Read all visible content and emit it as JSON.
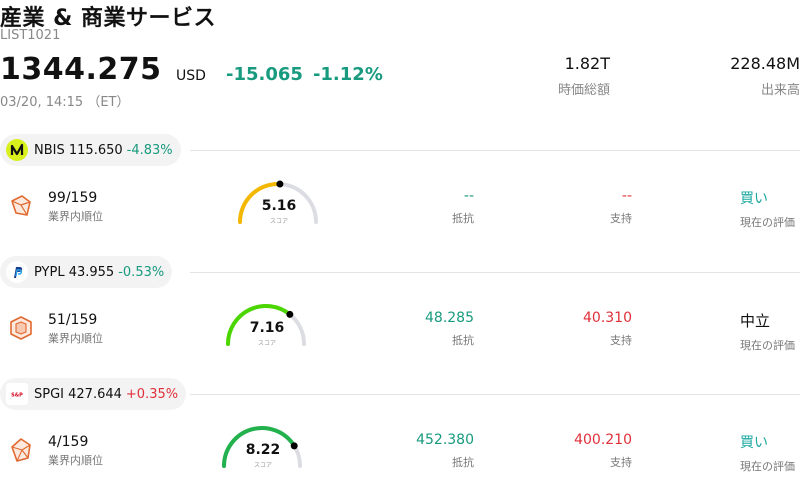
{
  "header": {
    "title": "産業 & 商業サービス",
    "list_id": "LIST1021",
    "price": "1344.275",
    "currency": "USD",
    "change_abs": "-15.065",
    "change_pct": "-1.12%",
    "timestamp": "03/20, 14:15 （ET）"
  },
  "stats": {
    "market_cap_value": "1.82T",
    "market_cap_label": "時価総額",
    "volume_value": "228.48M",
    "volume_label": "出来高"
  },
  "stocks": [
    {
      "symbol": "NBIS",
      "price": "115.650",
      "pct": "-4.83%",
      "rank": "99/159",
      "rank_label": "業界内順位",
      "score": "5.16",
      "score_value": 5.16,
      "score_label": "スコア",
      "score_color": "#f5b800",
      "resistance": "--",
      "resistance_label": "抵抗",
      "support": "--",
      "support_label": "支持",
      "evaluation": "買い",
      "evaluation_label": "現在の評価",
      "logo_icon": "nebius-logo-icon"
    },
    {
      "symbol": "PYPL",
      "price": "43.955",
      "pct": "-0.53%",
      "rank": "51/159",
      "rank_label": "業界内順位",
      "score": "7.16",
      "score_value": 7.16,
      "score_label": "スコア",
      "score_color": "#4cd600",
      "resistance": "48.285",
      "resistance_label": "抵抗",
      "support": "40.310",
      "support_label": "支持",
      "evaluation": "中立",
      "evaluation_label": "現在の評価",
      "logo_icon": "paypal-logo-icon"
    },
    {
      "symbol": "SPGI",
      "price": "427.644",
      "pct": "+0.35%",
      "rank": "4/159",
      "rank_label": "業界内順位",
      "score": "8.22",
      "score_value": 8.22,
      "score_label": "スコア",
      "score_color": "#22b14c",
      "resistance": "452.380",
      "resistance_label": "抵抗",
      "support": "400.210",
      "support_label": "支持",
      "evaluation": "買い",
      "evaluation_label": "現在の評価",
      "logo_icon": "sp-global-logo-icon"
    }
  ]
}
